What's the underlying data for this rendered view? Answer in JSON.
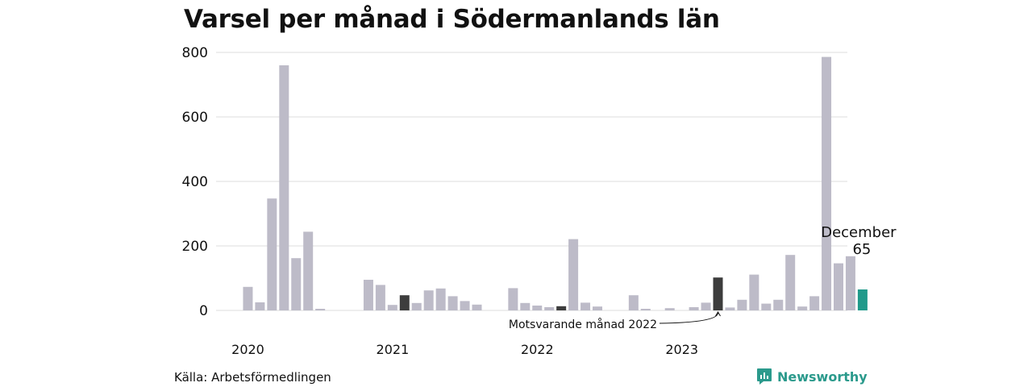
{
  "title": "Varsel per månad i Södermanlands län",
  "source": "Källa: Arbetsförmedlingen",
  "brand": {
    "name": "Newsworthy",
    "icon": "newsworthy-logo-icon",
    "color": "#2b9a8c"
  },
  "chart_data": {
    "type": "bar",
    "title": "Varsel per månad i Södermanlands län",
    "xlabel": "",
    "ylabel": "",
    "ylim": [
      0,
      800
    ],
    "yticks": [
      "0",
      "200",
      "400",
      "600",
      "800"
    ],
    "grid": true,
    "year_labels": [
      {
        "label": "2020",
        "index": 0
      },
      {
        "label": "2021",
        "index": 12
      },
      {
        "label": "2022",
        "index": 24
      },
      {
        "label": "2023",
        "index": 36
      }
    ],
    "colors": {
      "default": "#bdbbc8",
      "highlight_dark": "#3d3d3d",
      "current": "#1f9a8a",
      "grid": "#dddddd"
    },
    "values": [
      0,
      73,
      25,
      347,
      760,
      162,
      244,
      5,
      0,
      0,
      0,
      95,
      79,
      17,
      47,
      23,
      62,
      68,
      44,
      29,
      18,
      0,
      0,
      69,
      23,
      15,
      10,
      13,
      221,
      24,
      12,
      0,
      0,
      47,
      5,
      0,
      7,
      0,
      10,
      24,
      102,
      9,
      33,
      111,
      21,
      33,
      172,
      12,
      44,
      786,
      146,
      168,
      65
    ],
    "dark_indices": [
      14,
      27,
      40
    ],
    "current_index": 52,
    "annotations": {
      "current_month": "December",
      "current_value": "65",
      "comparison": "Motsvarande månad 2022"
    }
  }
}
